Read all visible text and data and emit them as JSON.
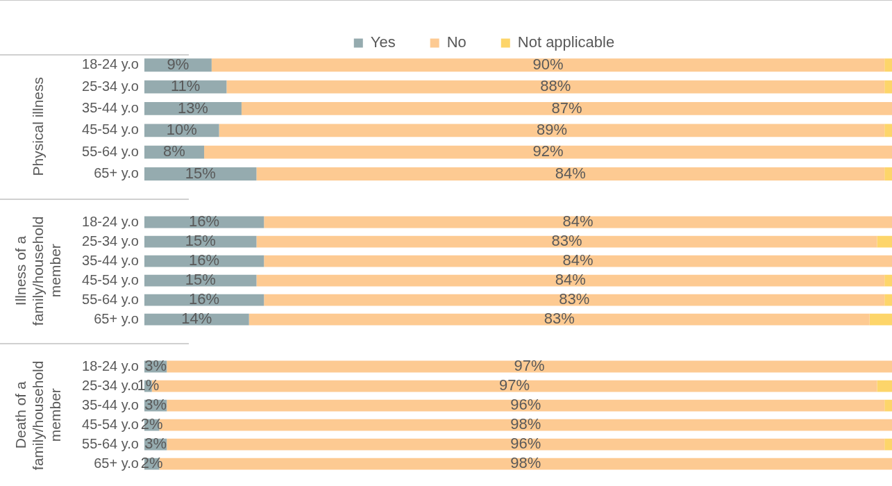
{
  "chart_data": [
    {
      "type": "bar",
      "orientation": "horizontal",
      "stacked": true,
      "title": "Physical illness",
      "legend": "top",
      "tick_labels": "y",
      "grid": false,
      "xlim": [
        0,
        100
      ],
      "categories": [
        "18-24 y.o",
        "25-34 y.o",
        "35-44 y.o",
        "45-54 y.o",
        "55-64 y.o",
        "65+ y.o"
      ],
      "series": [
        {
          "name": "Yes",
          "color": "#95abaf",
          "values": [
            9,
            11,
            13,
            10,
            8,
            15
          ],
          "value_labels": [
            "9%",
            "11%",
            "13%",
            "10%",
            "8%",
            "15%"
          ]
        },
        {
          "name": "No",
          "color": "#fdca92",
          "values": [
            90,
            88,
            87,
            89,
            92,
            84
          ],
          "value_labels": [
            "90%",
            "88%",
            "87%",
            "89%",
            "92%",
            "84%"
          ]
        },
        {
          "name": "Not applicable",
          "color": "#fdd56a",
          "values": [
            1,
            1,
            0,
            1,
            0,
            1
          ]
        }
      ]
    },
    {
      "type": "bar",
      "orientation": "horizontal",
      "stacked": true,
      "title": "Illness of a family/household member",
      "tick_labels": "y",
      "grid": false,
      "xlim": [
        0,
        100
      ],
      "categories": [
        "18-24 y.o",
        "25-34 y.o",
        "35-44 y.o",
        "45-54 y.o",
        "55-64 y.o",
        "65+ y.o"
      ],
      "series": [
        {
          "color": "#95abaf",
          "values": [
            16,
            15,
            16,
            15,
            16,
            14
          ],
          "value_labels": [
            "16%",
            "15%",
            "16%",
            "15%",
            "16%",
            "14%"
          ]
        },
        {
          "color": "#fdca92",
          "values": [
            84,
            83,
            84,
            84,
            83,
            83
          ],
          "value_labels": [
            "84%",
            "83%",
            "84%",
            "84%",
            "83%",
            "83%"
          ]
        },
        {
          "color": "#fdd56a",
          "values": [
            0,
            2,
            0,
            1,
            1,
            3
          ]
        }
      ]
    },
    {
      "type": "bar",
      "orientation": "horizontal",
      "stacked": true,
      "title": "Death of a family/household member",
      "tick_labels": "y",
      "grid": false,
      "xlim": [
        0,
        100
      ],
      "categories": [
        "18-24 y.o",
        "25-34 y.o",
        "35-44 y.o",
        "45-54 y.o",
        "55-64 y.o",
        "65+ y.o"
      ],
      "series": [
        {
          "color": "#95abaf",
          "values": [
            3,
            1,
            3,
            2,
            3,
            2
          ],
          "value_labels": [
            "3%",
            "1%",
            "3%",
            "2%",
            "3%",
            "2%"
          ]
        },
        {
          "color": "#fdca92",
          "values": [
            97,
            97,
            96,
            98,
            96,
            98
          ],
          "value_labels": [
            "97%",
            "97%",
            "96%",
            "98%",
            "96%",
            "98%"
          ]
        },
        {
          "color": "#fdd56a",
          "values": [
            0,
            2,
            1,
            0,
            1,
            0
          ]
        }
      ]
    }
  ]
}
